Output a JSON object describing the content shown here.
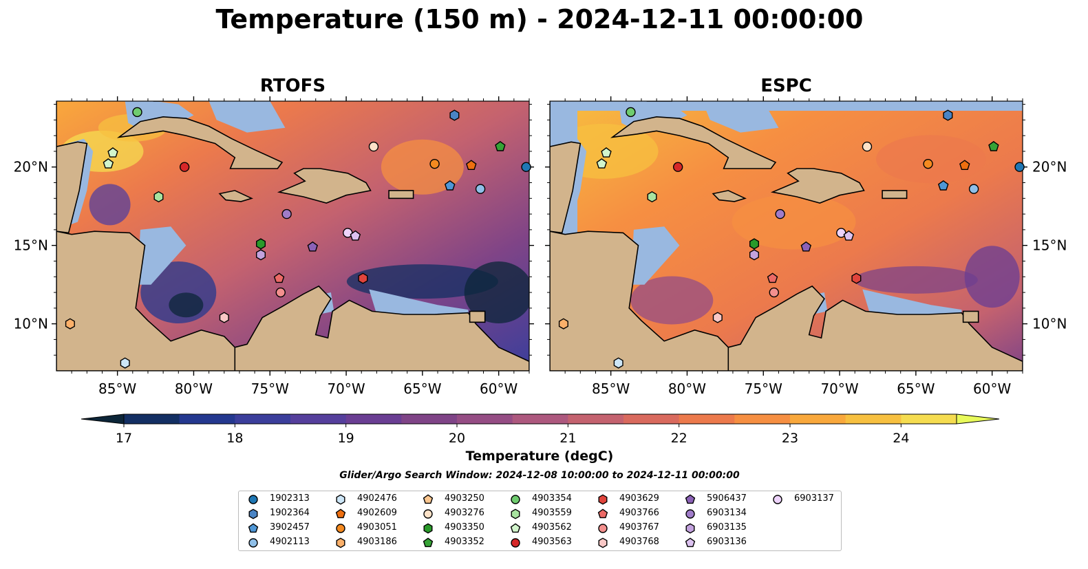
{
  "title": "Temperature (150 m) - 2024-12-11 00:00:00",
  "panels": [
    {
      "title": "RTOFS"
    },
    {
      "title": "ESPC"
    }
  ],
  "map": {
    "lon_ticks": [
      "85°W",
      "80°W",
      "75°W",
      "70°W",
      "65°W",
      "60°W"
    ],
    "lat_ticks": [
      "20°N",
      "15°N",
      "10°N"
    ],
    "lon_range": [
      -89.0,
      -58.0
    ],
    "lat_range": [
      7.0,
      24.2
    ],
    "land_color": "#d2b48c",
    "shallow_water_color": "#99b8e0",
    "coastline_color": "#000000"
  },
  "colorbar": {
    "label": "Temperature (degC)",
    "ticks": [
      "17",
      "18",
      "19",
      "20",
      "21",
      "22",
      "23",
      "24"
    ],
    "min": 17.0,
    "max": 24.5,
    "step": 0.5,
    "extend": "both",
    "colors": [
      "#0c2538",
      "#132f63",
      "#24388f",
      "#3b3e9b",
      "#553f9c",
      "#6a3e93",
      "#7f4487",
      "#954d84",
      "#ad587e",
      "#c4626f",
      "#d96a5e",
      "#ec7a4c",
      "#f68f42",
      "#f9a83c",
      "#f7c040",
      "#f5dc50",
      "#e8fa5b"
    ]
  },
  "search_window": "Glider/Argo Search Window: 2024-12-08 10:00:00 to 2024-12-11 00:00:00",
  "legend": [
    {
      "id": "1902313",
      "color": "#1f77b4",
      "marker": "circle"
    },
    {
      "id": "1902364",
      "color": "#4a84c4",
      "marker": "hexagon"
    },
    {
      "id": "3902457",
      "color": "#4f97d6",
      "marker": "pentagon"
    },
    {
      "id": "4902113",
      "color": "#8fbfe8",
      "marker": "circle"
    },
    {
      "id": "4902476",
      "color": "#cde6f7",
      "marker": "hexagon"
    },
    {
      "id": "4902609",
      "color": "#ee6f10",
      "marker": "pentagon"
    },
    {
      "id": "4903051",
      "color": "#f48a20",
      "marker": "circle"
    },
    {
      "id": "4903186",
      "color": "#fbb06a",
      "marker": "hexagon"
    },
    {
      "id": "4903250",
      "color": "#fcc790",
      "marker": "pentagon"
    },
    {
      "id": "4903276",
      "color": "#fde2c8",
      "marker": "circle"
    },
    {
      "id": "4903350",
      "color": "#2a9a2a",
      "marker": "hexagon"
    },
    {
      "id": "4903352",
      "color": "#36a336",
      "marker": "pentagon"
    },
    {
      "id": "4903354",
      "color": "#6fcc6f",
      "marker": "circle"
    },
    {
      "id": "4903559",
      "color": "#a8e3a0",
      "marker": "hexagon"
    },
    {
      "id": "4903562",
      "color": "#d2f5cc",
      "marker": "pentagon"
    },
    {
      "id": "4903563",
      "color": "#d62728",
      "marker": "circle"
    },
    {
      "id": "4903629",
      "color": "#e0443c",
      "marker": "hexagon"
    },
    {
      "id": "4903766",
      "color": "#ec6a66",
      "marker": "pentagon"
    },
    {
      "id": "4903767",
      "color": "#f3908e",
      "marker": "circle"
    },
    {
      "id": "4903768",
      "color": "#f9c8c6",
      "marker": "hexagon"
    },
    {
      "id": "5906437",
      "color": "#8c62b7",
      "marker": "pentagon"
    },
    {
      "id": "6903134",
      "color": "#a07cc9",
      "marker": "circle"
    },
    {
      "id": "6903135",
      "color": "#c3a2de",
      "marker": "hexagon"
    },
    {
      "id": "6903136",
      "color": "#dcc2f0",
      "marker": "pentagon"
    },
    {
      "id": "6903137",
      "color": "#eed4fb",
      "marker": "circle"
    }
  ],
  "floats": [
    {
      "id": "4903354",
      "lon": -83.7,
      "lat": 23.5
    },
    {
      "id": "1902364",
      "lon": -62.9,
      "lat": 23.3
    },
    {
      "id": "4903562",
      "lon": -85.3,
      "lat": 20.9
    },
    {
      "id": "4903562",
      "lon": -85.6,
      "lat": 20.2
    },
    {
      "id": "4903276",
      "lon": -68.2,
      "lat": 21.3
    },
    {
      "id": "4903352",
      "lon": -59.9,
      "lat": 21.3
    },
    {
      "id": "4903563",
      "lon": -80.6,
      "lat": 20.0
    },
    {
      "id": "4903051",
      "lon": -64.2,
      "lat": 20.2
    },
    {
      "id": "4902609",
      "lon": -61.8,
      "lat": 20.1
    },
    {
      "id": "1902313",
      "lon": -58.2,
      "lat": 20.0
    },
    {
      "id": "3902457",
      "lon": -63.2,
      "lat": 18.8
    },
    {
      "id": "4902113",
      "lon": -61.2,
      "lat": 18.6
    },
    {
      "id": "4903559",
      "lon": -82.3,
      "lat": 18.1
    },
    {
      "id": "6903134",
      "lon": -73.9,
      "lat": 17.0
    },
    {
      "id": "6903137",
      "lon": -69.9,
      "lat": 15.8
    },
    {
      "id": "6903136",
      "lon": -69.4,
      "lat": 15.6
    },
    {
      "id": "4903350",
      "lon": -75.6,
      "lat": 15.1
    },
    {
      "id": "5906437",
      "lon": -72.2,
      "lat": 14.9
    },
    {
      "id": "6903135",
      "lon": -75.6,
      "lat": 14.4
    },
    {
      "id": "4903766",
      "lon": -74.4,
      "lat": 12.9
    },
    {
      "id": "4903629",
      "lon": -68.9,
      "lat": 12.9
    },
    {
      "id": "4903767",
      "lon": -74.3,
      "lat": 12.0
    },
    {
      "id": "4903768",
      "lon": -78.0,
      "lat": 10.4
    },
    {
      "id": "4903186",
      "lon": -88.1,
      "lat": 10.0
    },
    {
      "id": "4902476",
      "lon": -84.5,
      "lat": 7.5
    }
  ]
}
